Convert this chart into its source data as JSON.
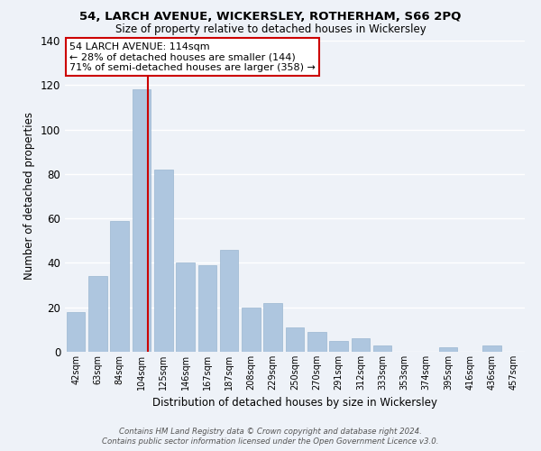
{
  "title1": "54, LARCH AVENUE, WICKERSLEY, ROTHERHAM, S66 2PQ",
  "title2": "Size of property relative to detached houses in Wickersley",
  "xlabel": "Distribution of detached houses by size in Wickersley",
  "ylabel": "Number of detached properties",
  "bar_labels": [
    "42sqm",
    "63sqm",
    "84sqm",
    "104sqm",
    "125sqm",
    "146sqm",
    "167sqm",
    "187sqm",
    "208sqm",
    "229sqm",
    "250sqm",
    "270sqm",
    "291sqm",
    "312sqm",
    "333sqm",
    "353sqm",
    "374sqm",
    "395sqm",
    "416sqm",
    "436sqm",
    "457sqm"
  ],
  "bar_values": [
    18,
    34,
    59,
    118,
    82,
    40,
    39,
    46,
    20,
    22,
    11,
    9,
    5,
    6,
    3,
    0,
    0,
    2,
    0,
    3,
    0
  ],
  "bar_color": "#aec6df",
  "bar_edge_color": "#9ab6d0",
  "vline_color": "#cc0000",
  "vline_x": 3.3,
  "ylim": [
    0,
    140
  ],
  "yticks": [
    0,
    20,
    40,
    60,
    80,
    100,
    120,
    140
  ],
  "annotation_text": "54 LARCH AVENUE: 114sqm\n← 28% of detached houses are smaller (144)\n71% of semi-detached houses are larger (358) →",
  "annotation_box_color": "#ffffff",
  "annotation_box_edge": "#cc0000",
  "footer1": "Contains HM Land Registry data © Crown copyright and database right 2024.",
  "footer2": "Contains public sector information licensed under the Open Government Licence v3.0.",
  "background_color": "#eef2f8"
}
